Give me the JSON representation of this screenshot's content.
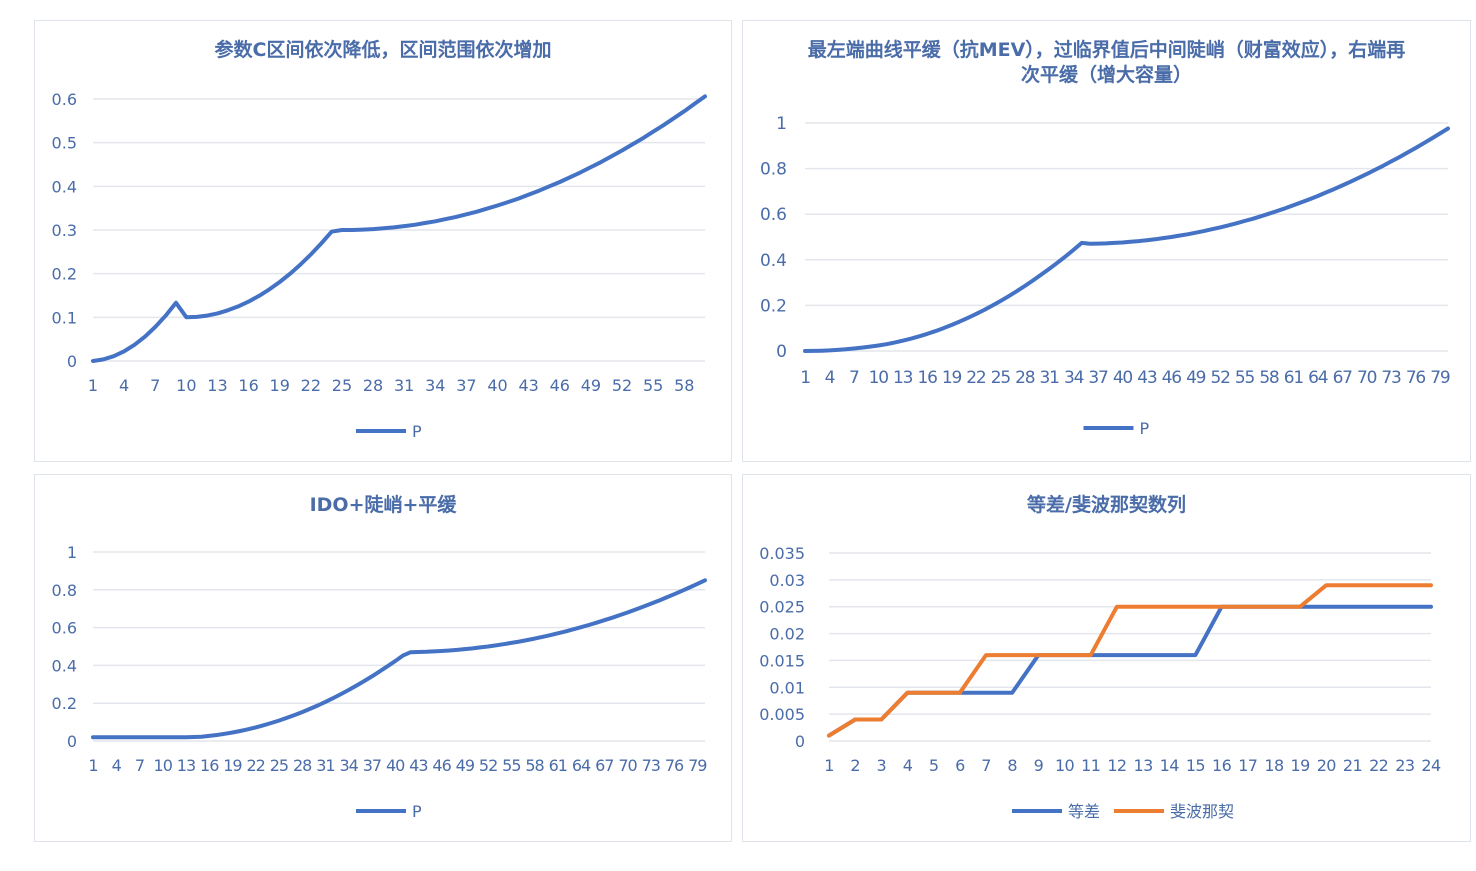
{
  "colors": {
    "title": "#4a6ca8",
    "tick": "#4a6ca8",
    "grid": "#e3e6ec",
    "border": "#dfe3ea",
    "series_blue": "#4472c4",
    "series_orange": "#ed7d31"
  },
  "chart_data": [
    {
      "type": "line",
      "title": "参数C区间依次降低，区间范围依次增加",
      "x": [
        1,
        2,
        3,
        4,
        5,
        6,
        7,
        8,
        9,
        10,
        11,
        12,
        13,
        14,
        15,
        16,
        17,
        18,
        19,
        20,
        21,
        22,
        23,
        24,
        25,
        26,
        27,
        28,
        29,
        30,
        31,
        32,
        33,
        34,
        35,
        36,
        37,
        38,
        39,
        40,
        41,
        42,
        43,
        44,
        45,
        46,
        47,
        48,
        49,
        50,
        51,
        52,
        53,
        54,
        55,
        56,
        57,
        58,
        59,
        60
      ],
      "x_tick_labels": [
        "1",
        "4",
        "7",
        "10",
        "13",
        "16",
        "19",
        "22",
        "25",
        "28",
        "31",
        "34",
        "37",
        "40",
        "43",
        "46",
        "49",
        "52",
        "55",
        "58"
      ],
      "y_tick_labels": [
        "0",
        "0.1",
        "0.2",
        "0.3",
        "0.4",
        "0.5",
        "0.6"
      ],
      "ylim": [
        0,
        0.6
      ],
      "grid": true,
      "legend_position": "bottom",
      "series": [
        {
          "name": "P",
          "color": "#4472c4",
          "values": [
            0,
            0.0037,
            0.0111,
            0.0222,
            0.037,
            0.0556,
            0.0778,
            0.1037,
            0.1333,
            0.1,
            0.101,
            0.104,
            0.109,
            0.116,
            0.125,
            0.136,
            0.149,
            0.164,
            0.181,
            0.2,
            0.221,
            0.244,
            0.269,
            0.296,
            0.3,
            0.3,
            0.301,
            0.302,
            0.304,
            0.306,
            0.309,
            0.312,
            0.316,
            0.32,
            0.325,
            0.33,
            0.336,
            0.342,
            0.349,
            0.356,
            0.364,
            0.372,
            0.381,
            0.39,
            0.4,
            0.41,
            0.421,
            0.432,
            0.444,
            0.456,
            0.469,
            0.482,
            0.496,
            0.51,
            0.525,
            0.54,
            0.556,
            0.572,
            0.589,
            0.606
          ]
        }
      ]
    },
    {
      "type": "line",
      "title": "最左端曲线平缓（抗MEV），过临界值后中间陡峭（财富效应），右端再次平缓（增大容量）",
      "x": [
        1,
        2,
        3,
        4,
        5,
        6,
        7,
        8,
        9,
        10,
        11,
        12,
        13,
        14,
        15,
        16,
        17,
        18,
        19,
        20,
        21,
        22,
        23,
        24,
        25,
        26,
        27,
        28,
        29,
        30,
        31,
        32,
        33,
        34,
        35,
        36,
        37,
        38,
        39,
        40,
        41,
        42,
        43,
        44,
        45,
        46,
        47,
        48,
        49,
        50,
        51,
        52,
        53,
        54,
        55,
        56,
        57,
        58,
        59,
        60,
        61,
        62,
        63,
        64,
        65,
        66,
        67,
        68,
        69,
        70,
        71,
        72,
        73,
        74,
        75,
        76,
        77,
        78,
        79,
        80
      ],
      "x_tick_labels": [
        "1",
        "4",
        "7",
        "10",
        "13",
        "16",
        "19",
        "22",
        "25",
        "28",
        "31",
        "34",
        "37",
        "40",
        "43",
        "46",
        "49",
        "52",
        "55",
        "58",
        "61",
        "64",
        "67",
        "70",
        "73",
        "76",
        "79"
      ],
      "y_tick_labels": [
        "0",
        "0.2",
        "0.4",
        "0.6",
        "0.8",
        "1"
      ],
      "ylim": [
        0,
        1
      ],
      "grid": true,
      "legend_position": "bottom",
      "series": [
        {
          "name": "P",
          "color": "#4472c4",
          "values": [
            0,
            0.0003,
            0.0012,
            0.0027,
            0.0048,
            0.0075,
            0.0108,
            0.0147,
            0.0192,
            0.0243,
            0.03,
            0.037,
            0.045,
            0.054,
            0.064,
            0.075,
            0.087,
            0.1,
            0.114,
            0.129,
            0.145,
            0.162,
            0.18,
            0.199,
            0.219,
            0.24,
            0.262,
            0.285,
            0.309,
            0.334,
            0.36,
            0.387,
            0.415,
            0.444,
            0.474,
            0.47,
            0.471,
            0.472,
            0.474,
            0.476,
            0.479,
            0.482,
            0.486,
            0.49,
            0.495,
            0.5,
            0.506,
            0.512,
            0.519,
            0.526,
            0.534,
            0.542,
            0.551,
            0.56,
            0.57,
            0.58,
            0.591,
            0.602,
            0.614,
            0.626,
            0.639,
            0.652,
            0.666,
            0.68,
            0.695,
            0.71,
            0.726,
            0.742,
            0.759,
            0.776,
            0.794,
            0.812,
            0.831,
            0.85,
            0.87,
            0.89,
            0.911,
            0.932,
            0.954,
            0.976
          ]
        }
      ]
    },
    {
      "type": "line",
      "title": "IDO+陡峭+平缓",
      "x": [
        1,
        2,
        3,
        4,
        5,
        6,
        7,
        8,
        9,
        10,
        11,
        12,
        13,
        14,
        15,
        16,
        17,
        18,
        19,
        20,
        21,
        22,
        23,
        24,
        25,
        26,
        27,
        28,
        29,
        30,
        31,
        32,
        33,
        34,
        35,
        36,
        37,
        38,
        39,
        40,
        41,
        42,
        43,
        44,
        45,
        46,
        47,
        48,
        49,
        50,
        51,
        52,
        53,
        54,
        55,
        56,
        57,
        58,
        59,
        60,
        61,
        62,
        63,
        64,
        65,
        66,
        67,
        68,
        69,
        70,
        71,
        72,
        73,
        74,
        75,
        76,
        77,
        78,
        79,
        80
      ],
      "x_tick_labels": [
        "1",
        "4",
        "7",
        "10",
        "13",
        "16",
        "19",
        "22",
        "25",
        "28",
        "31",
        "34",
        "37",
        "40",
        "43",
        "46",
        "49",
        "52",
        "55",
        "58",
        "61",
        "64",
        "67",
        "70",
        "73",
        "76",
        "79"
      ],
      "y_tick_labels": [
        "0",
        "0.2",
        "0.4",
        "0.6",
        "0.8",
        "1"
      ],
      "ylim": [
        0,
        1
      ],
      "grid": true,
      "legend_position": "bottom",
      "series": [
        {
          "name": "P",
          "color": "#4472c4",
          "values": [
            0.02,
            0.02,
            0.02,
            0.02,
            0.02,
            0.02,
            0.02,
            0.02,
            0.02,
            0.02,
            0.02,
            0.02,
            0.02,
            0.021,
            0.023,
            0.027,
            0.032,
            0.038,
            0.045,
            0.053,
            0.062,
            0.072,
            0.083,
            0.095,
            0.108,
            0.122,
            0.137,
            0.153,
            0.17,
            0.188,
            0.207,
            0.227,
            0.248,
            0.27,
            0.293,
            0.317,
            0.342,
            0.368,
            0.395,
            0.423,
            0.452,
            0.47,
            0.471,
            0.472,
            0.474,
            0.476,
            0.479,
            0.482,
            0.486,
            0.49,
            0.495,
            0.5,
            0.506,
            0.512,
            0.519,
            0.526,
            0.534,
            0.542,
            0.551,
            0.56,
            0.57,
            0.58,
            0.591,
            0.602,
            0.614,
            0.626,
            0.639,
            0.652,
            0.666,
            0.68,
            0.695,
            0.71,
            0.726,
            0.742,
            0.759,
            0.776,
            0.794,
            0.812,
            0.831,
            0.85
          ]
        }
      ]
    },
    {
      "type": "line",
      "title": "等差/斐波那契数列",
      "x": [
        1,
        2,
        3,
        4,
        5,
        6,
        7,
        8,
        9,
        10,
        11,
        12,
        13,
        14,
        15,
        16,
        17,
        18,
        19,
        20,
        21,
        22,
        23,
        24
      ],
      "x_tick_labels": [
        "1",
        "2",
        "3",
        "4",
        "5",
        "6",
        "7",
        "8",
        "9",
        "10",
        "11",
        "12",
        "13",
        "14",
        "15",
        "16",
        "17",
        "18",
        "19",
        "20",
        "21",
        "22",
        "23",
        "24"
      ],
      "y_tick_labels": [
        "0",
        "0.005",
        "0.01",
        "0.015",
        "0.02",
        "0.025",
        "0.03",
        "0.035"
      ],
      "ylim": [
        0,
        0.035
      ],
      "grid": true,
      "legend_position": "bottom",
      "series": [
        {
          "name": "等差",
          "color": "#4472c4",
          "values": [
            0.001,
            0.004,
            0.004,
            0.009,
            0.009,
            0.009,
            0.009,
            0.009,
            0.016,
            0.016,
            0.016,
            0.016,
            0.016,
            0.016,
            0.016,
            0.025,
            0.025,
            0.025,
            0.025,
            0.025,
            0.025,
            0.025,
            0.025,
            0.025
          ]
        },
        {
          "name": "斐波那契",
          "color": "#ed7d31",
          "values": [
            0.001,
            0.004,
            0.004,
            0.009,
            0.009,
            0.009,
            0.016,
            0.016,
            0.016,
            0.016,
            0.016,
            0.025,
            0.025,
            0.025,
            0.025,
            0.025,
            0.025,
            0.025,
            0.025,
            0.029,
            0.029,
            0.029,
            0.029,
            0.029
          ]
        }
      ]
    }
  ]
}
